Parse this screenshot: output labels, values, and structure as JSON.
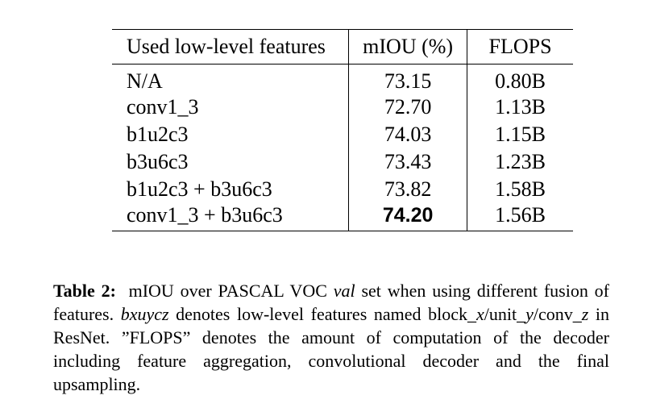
{
  "table": {
    "headers": [
      "Used low-level features",
      "mIOU (%)",
      "FLOPS"
    ],
    "rows": [
      {
        "feature": "N/A",
        "miou": "73.15",
        "flops": "0.80B",
        "bold": false
      },
      {
        "feature": "conv1_3",
        "miou": "72.70",
        "flops": "1.13B",
        "bold": false
      },
      {
        "feature": "b1u2c3",
        "miou": "74.03",
        "flops": "1.15B",
        "bold": false
      },
      {
        "feature": "b3u6c3",
        "miou": "73.43",
        "flops": "1.23B",
        "bold": false
      },
      {
        "feature": "b1u2c3 + b3u6c3",
        "miou": "73.82",
        "flops": "1.58B",
        "bold": false
      },
      {
        "feature": "conv1_3 + b3u6c3",
        "miou": "74.20",
        "flops": "1.56B",
        "bold": true
      }
    ]
  },
  "caption": {
    "label": "Table 2:",
    "seg1": "mIOU over PASCAL VOC ",
    "math1": "val",
    "seg2": " set when using different fusion of features. ",
    "math2": "bxuycz",
    "seg3": " denotes low-level features named block_",
    "math3": "x",
    "seg4": "/unit_",
    "math4": "y",
    "seg5": "/conv_",
    "math5": "z",
    "seg6": " in ResNet. ”FLOPS” denotes the amount of computation of the decoder including feature aggregation, convolutional decoder and the final upsampling."
  }
}
